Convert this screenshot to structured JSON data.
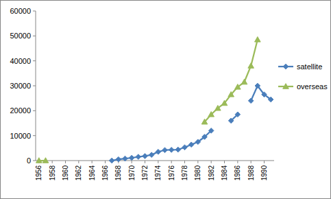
{
  "chart_data": {
    "type": "line",
    "x": [
      1956,
      1957,
      1958,
      1959,
      1960,
      1961,
      1962,
      1963,
      1964,
      1965,
      1966,
      1967,
      1968,
      1969,
      1970,
      1971,
      1972,
      1973,
      1974,
      1975,
      1976,
      1977,
      1978,
      1979,
      1980,
      1981,
      1982,
      1983,
      1984,
      1985,
      1986,
      1987,
      1988,
      1989,
      1990,
      1991
    ],
    "xlim": [
      1955.5,
      1991.5
    ],
    "xticks": [
      1956,
      1958,
      1960,
      1962,
      1964,
      1966,
      1968,
      1970,
      1972,
      1974,
      1976,
      1978,
      1980,
      1982,
      1984,
      1986,
      1988,
      1990
    ],
    "ylim": [
      0,
      60000
    ],
    "yticks": [
      0,
      10000,
      20000,
      30000,
      40000,
      50000,
      60000
    ],
    "grid": false,
    "legend": "right",
    "series": [
      {
        "name": "satellite",
        "color": "#4a7ebb",
        "marker": "diamond",
        "values": [
          null,
          null,
          null,
          null,
          null,
          null,
          null,
          null,
          null,
          null,
          null,
          0,
          500,
          800,
          1100,
          1500,
          1800,
          2300,
          3500,
          4200,
          4300,
          4400,
          5300,
          6400,
          7500,
          9500,
          12000,
          null,
          null,
          16000,
          18500,
          null,
          24000,
          30000,
          26500,
          24500
        ]
      },
      {
        "name": "overseas",
        "color": "#9bbb59",
        "marker": "triangle",
        "values": [
          0,
          0,
          null,
          null,
          null,
          null,
          null,
          null,
          null,
          null,
          null,
          null,
          null,
          null,
          null,
          null,
          null,
          null,
          null,
          null,
          null,
          null,
          null,
          null,
          null,
          15500,
          18500,
          21000,
          23000,
          26500,
          29500,
          31500,
          38000,
          48500,
          null,
          null
        ]
      }
    ]
  }
}
